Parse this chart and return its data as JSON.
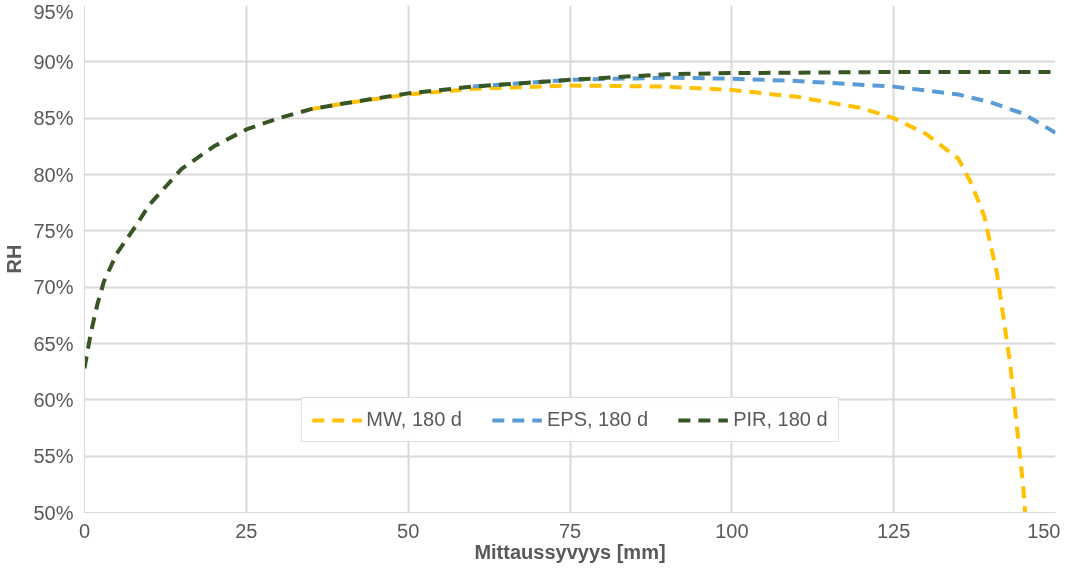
{
  "chart_data": {
    "type": "line",
    "xlabel": "Mittaussyvyys [mm]",
    "ylabel": "RH",
    "xlim": [
      0,
      150
    ],
    "xticks": [
      0,
      25,
      50,
      75,
      100,
      125,
      150
    ],
    "ylim": [
      50,
      95
    ],
    "yticks": [
      {
        "value": 50,
        "label": "50%"
      },
      {
        "value": 55,
        "label": "55%"
      },
      {
        "value": 60,
        "label": "60%"
      },
      {
        "value": 65,
        "label": "65%"
      },
      {
        "value": 70,
        "label": "70%"
      },
      {
        "value": 75,
        "label": "75%"
      },
      {
        "value": 80,
        "label": "80%"
      },
      {
        "value": 85,
        "label": "85%"
      },
      {
        "value": 90,
        "label": "90%"
      },
      {
        "value": 95,
        "label": "95%"
      }
    ],
    "grid": true,
    "legend": "bottom",
    "line_style": "dashed",
    "marker": "none",
    "series": [
      {
        "name": "MW, 180 d",
        "color": "#ffc000",
        "x": [
          35,
          40,
          50,
          60,
          75,
          90,
          100,
          110,
          120,
          125,
          130,
          135,
          137,
          139,
          141,
          143,
          145,
          145.3
        ],
        "values": [
          85.8,
          86.3,
          87.1,
          87.6,
          87.9,
          87.8,
          87.5,
          86.9,
          85.9,
          85,
          83.6,
          81.4,
          79.2,
          76.3,
          71.1,
          63.2,
          52.4,
          50
        ]
      },
      {
        "name": "EPS, 180 d",
        "color": "#5b9bd5",
        "x": [
          60,
          75,
          90,
          100,
          110,
          125,
          135,
          140,
          145,
          150
        ],
        "values": [
          87.8,
          88.4,
          88.6,
          88.5,
          88.3,
          87.8,
          87.1,
          86.4,
          85.4,
          83.7
        ]
      },
      {
        "name": "PIR, 180 d",
        "color": "#375623",
        "x": [
          0,
          1,
          2,
          3,
          5,
          8,
          10,
          15,
          20,
          25,
          30,
          35,
          40,
          50,
          60,
          75,
          90,
          100,
          125,
          150
        ],
        "values": [
          62.8,
          66,
          68.5,
          70.5,
          73,
          75.5,
          77.3,
          80.5,
          82.5,
          84,
          85,
          85.8,
          86.3,
          87.2,
          87.8,
          88.4,
          88.9,
          89,
          89.1,
          89.1
        ]
      }
    ]
  }
}
